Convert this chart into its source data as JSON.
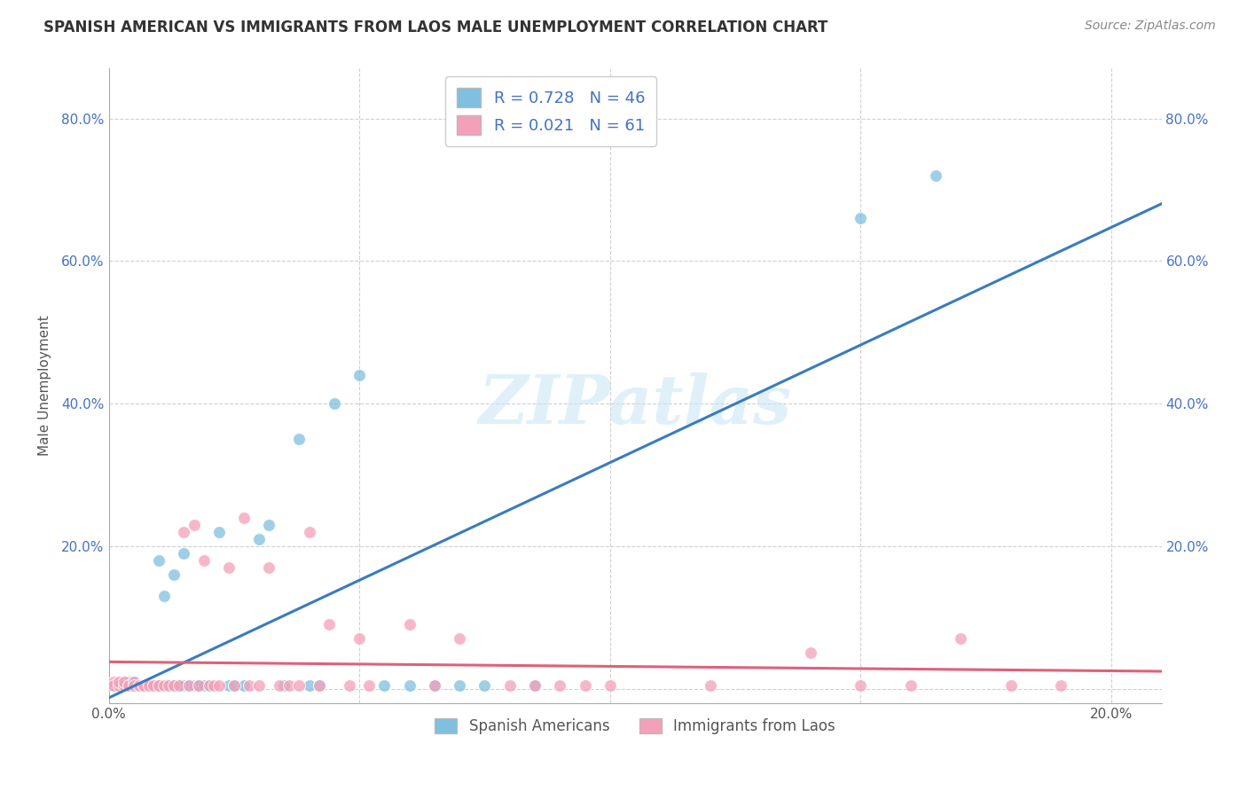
{
  "title": "SPANISH AMERICAN VS IMMIGRANTS FROM LAOS MALE UNEMPLOYMENT CORRELATION CHART",
  "source": "Source: ZipAtlas.com",
  "ylabel": "Male Unemployment",
  "xlim": [
    0.0,
    0.21
  ],
  "ylim": [
    -0.02,
    0.87
  ],
  "x_ticks": [
    0.0,
    0.05,
    0.1,
    0.15,
    0.2
  ],
  "y_ticks": [
    0.0,
    0.2,
    0.4,
    0.6,
    0.8
  ],
  "blue_color": "#7fbfdf",
  "pink_color": "#f4a0b8",
  "blue_line_color": "#3a7bbf",
  "pink_line_color": "#e0607a",
  "tick_color": "#4472c4",
  "r_blue": 0.728,
  "n_blue": 46,
  "r_pink": 0.021,
  "n_pink": 61,
  "legend_label_blue": "Spanish Americans",
  "legend_label_pink": "Immigrants from Laos",
  "blue_x": [
    0.001,
    0.002,
    0.003,
    0.004,
    0.005,
    0.005,
    0.006,
    0.007,
    0.008,
    0.008,
    0.009,
    0.01,
    0.01,
    0.011,
    0.012,
    0.013,
    0.013,
    0.014,
    0.015,
    0.015,
    0.016,
    0.017,
    0.018,
    0.018,
    0.019,
    0.02,
    0.022,
    0.024,
    0.025,
    0.027,
    0.03,
    0.032,
    0.035,
    0.038,
    0.04,
    0.042,
    0.045,
    0.05,
    0.055,
    0.06,
    0.065,
    0.07,
    0.075,
    0.085,
    0.15,
    0.165
  ],
  "blue_y": [
    0.005,
    0.005,
    0.01,
    0.01,
    0.005,
    0.01,
    0.005,
    0.005,
    0.005,
    0.005,
    0.005,
    0.18,
    0.005,
    0.13,
    0.005,
    0.16,
    0.005,
    0.005,
    0.19,
    0.005,
    0.005,
    0.005,
    0.005,
    0.005,
    0.005,
    0.005,
    0.22,
    0.005,
    0.005,
    0.005,
    0.21,
    0.23,
    0.005,
    0.35,
    0.005,
    0.005,
    0.4,
    0.44,
    0.005,
    0.005,
    0.005,
    0.005,
    0.005,
    0.005,
    0.66,
    0.72
  ],
  "pink_x": [
    0.001,
    0.001,
    0.002,
    0.002,
    0.003,
    0.003,
    0.004,
    0.004,
    0.005,
    0.005,
    0.006,
    0.006,
    0.007,
    0.007,
    0.008,
    0.008,
    0.009,
    0.01,
    0.01,
    0.011,
    0.012,
    0.013,
    0.014,
    0.015,
    0.016,
    0.017,
    0.018,
    0.019,
    0.02,
    0.021,
    0.022,
    0.024,
    0.025,
    0.027,
    0.028,
    0.03,
    0.032,
    0.034,
    0.036,
    0.038,
    0.04,
    0.042,
    0.044,
    0.048,
    0.05,
    0.052,
    0.06,
    0.065,
    0.07,
    0.08,
    0.085,
    0.09,
    0.095,
    0.1,
    0.12,
    0.14,
    0.15,
    0.16,
    0.17,
    0.18,
    0.19
  ],
  "pink_y": [
    0.01,
    0.005,
    0.005,
    0.01,
    0.005,
    0.01,
    0.005,
    0.005,
    0.01,
    0.005,
    0.005,
    0.005,
    0.005,
    0.005,
    0.005,
    0.005,
    0.005,
    0.005,
    0.005,
    0.005,
    0.005,
    0.005,
    0.005,
    0.22,
    0.005,
    0.23,
    0.005,
    0.18,
    0.005,
    0.005,
    0.005,
    0.17,
    0.005,
    0.24,
    0.005,
    0.005,
    0.17,
    0.005,
    0.005,
    0.005,
    0.22,
    0.005,
    0.09,
    0.005,
    0.07,
    0.005,
    0.09,
    0.005,
    0.07,
    0.005,
    0.005,
    0.005,
    0.005,
    0.005,
    0.005,
    0.05,
    0.005,
    0.005,
    0.07,
    0.005,
    0.005
  ],
  "watermark_text": "ZIPatlas",
  "background_color": "#ffffff",
  "grid_color": "#d0d0d0",
  "title_fontsize": 12,
  "axis_label_fontsize": 11,
  "tick_fontsize": 11
}
